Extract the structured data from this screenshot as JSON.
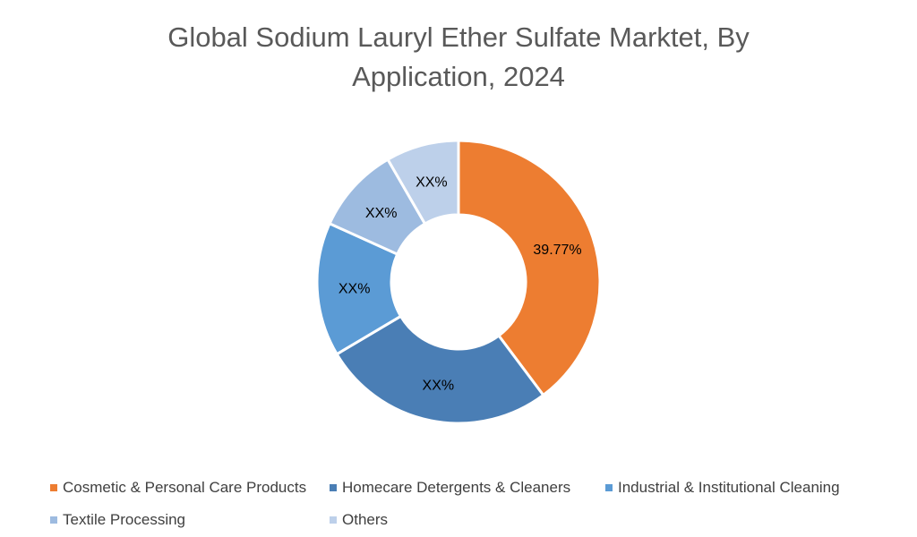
{
  "chart_data": {
    "type": "pie",
    "donut": true,
    "title": "Global Sodium Lauryl Ether Sulfate Marktet, By Application, 2024",
    "title_lines": [
      "Global Sodium Lauryl Ether Sulfate Marktet, By",
      "Application, 2024"
    ],
    "categories": [
      "Cosmetic & Personal Care Products",
      "Homecare Detergents & Cleaners",
      "Industrial & Institutional Cleaning",
      "Textile Processing",
      "Others"
    ],
    "values": [
      39.77,
      26.7,
      15.3,
      9.9,
      8.33
    ],
    "data_labels": [
      "39.77%",
      "XX%",
      "XX%",
      "XX%",
      "XX%"
    ],
    "colors": [
      "#ED7D31",
      "#4A7EB5",
      "#5B9BD5",
      "#9DBBE0",
      "#BDD0EA"
    ],
    "legend_position": "bottom"
  }
}
